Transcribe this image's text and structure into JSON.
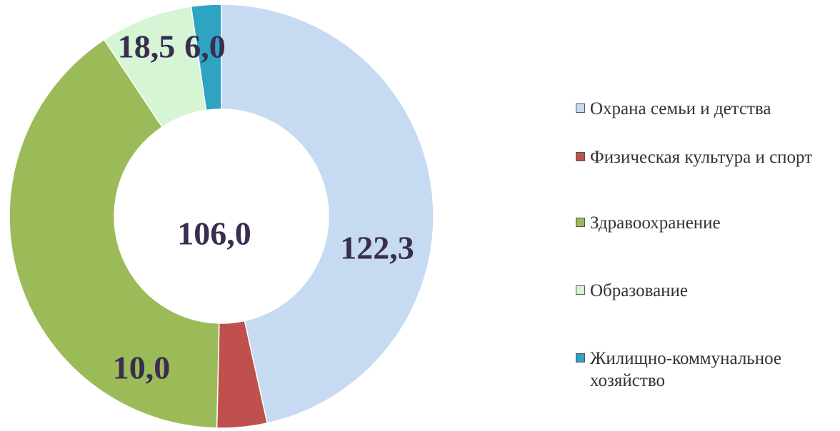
{
  "chart_data": {
    "type": "donut",
    "categories": [
      "Охрана семьи и детства",
      "Физическая культура и спорт",
      "Здравоохранение",
      "Образование",
      "Жилищно-коммунальное хозяйство"
    ],
    "values": [
      122.3,
      10.0,
      106.0,
      18.5,
      6.0
    ],
    "value_labels": [
      "122,3",
      "10,0",
      "106,0",
      "18,5",
      "6,0"
    ],
    "colors": [
      "#c6daf2",
      "#c0504d",
      "#9bbb59",
      "#d5f5d5",
      "#2fa3c2"
    ],
    "legend": "right"
  }
}
